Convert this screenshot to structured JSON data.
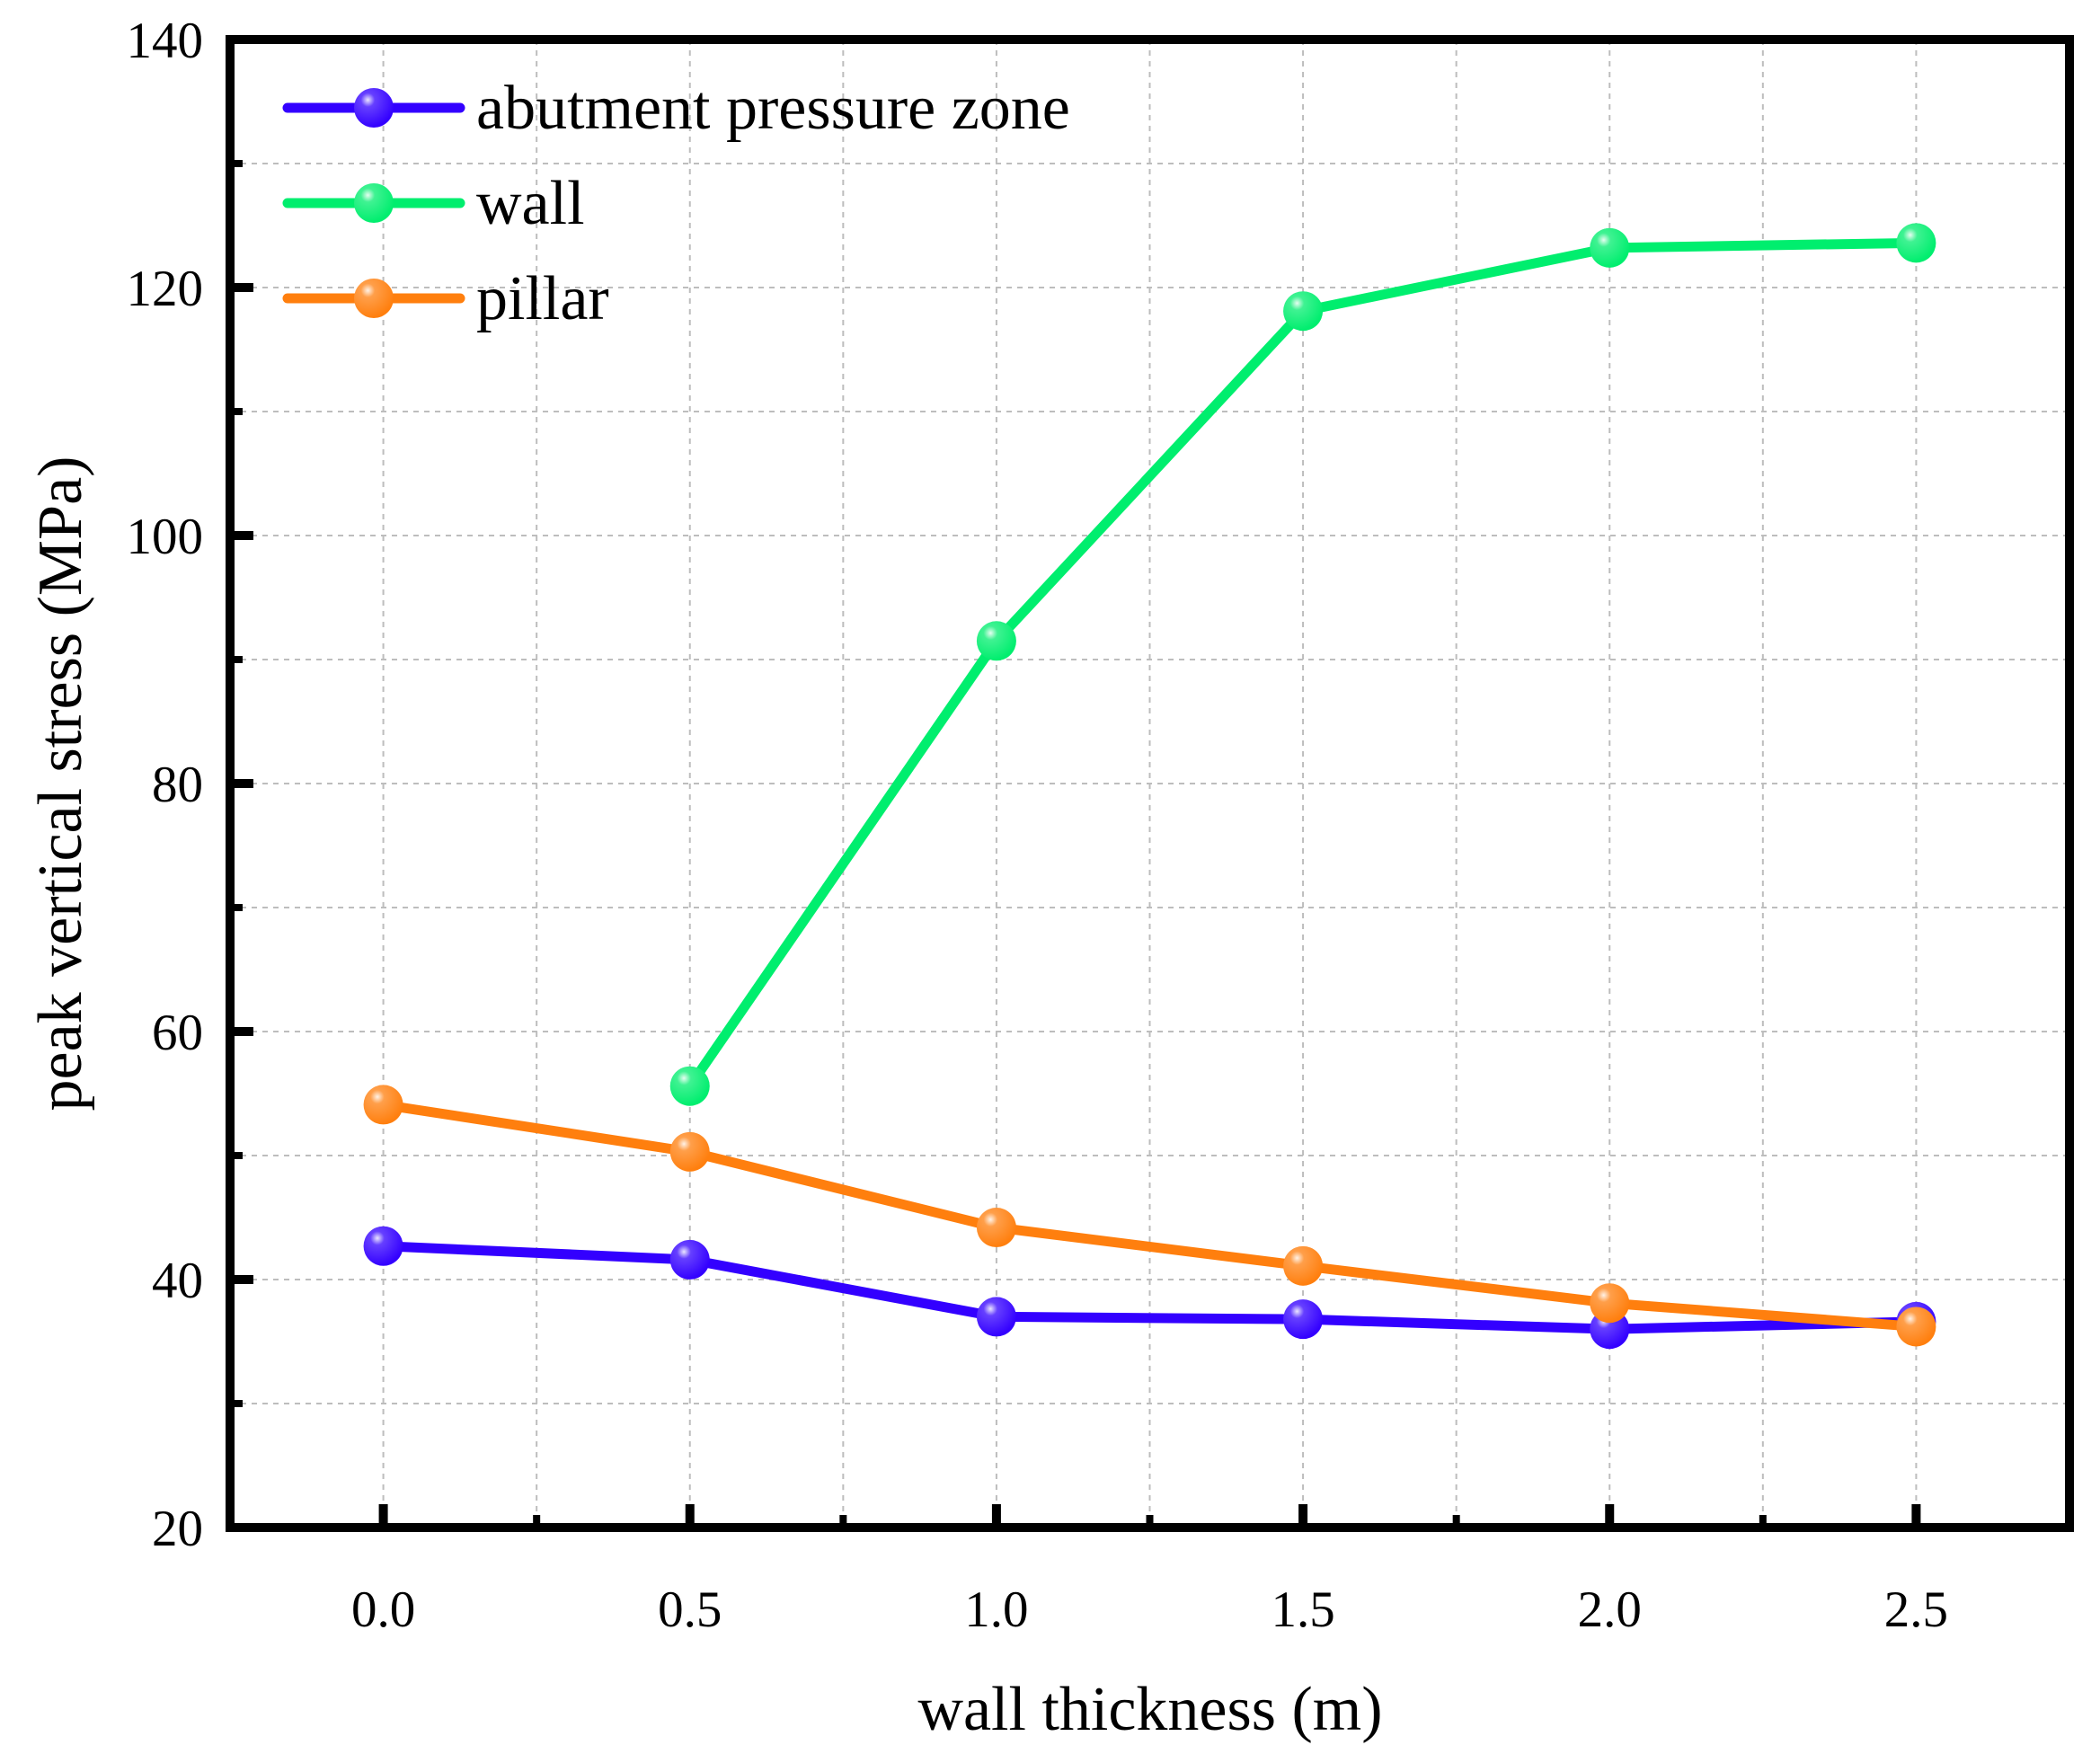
{
  "chart_data": {
    "type": "line",
    "title": "",
    "xlabel": "wall thickness (m)",
    "ylabel": "peak vertical stress (MPa)",
    "xlim": [
      -0.25,
      2.75
    ],
    "ylim": [
      20,
      140
    ],
    "xticks": [
      0.0,
      0.5,
      1.0,
      1.5,
      2.0,
      2.5
    ],
    "xtick_labels": [
      "0.0",
      "0.5",
      "1.0",
      "1.5",
      "2.0",
      "2.5"
    ],
    "yticks": [
      20,
      40,
      60,
      80,
      100,
      120,
      140
    ],
    "ytick_labels": [
      "20",
      "40",
      "60",
      "80",
      "100",
      "120",
      "140"
    ],
    "grid": true,
    "legend_position": "top-left",
    "series": [
      {
        "name": "abutment pressure zone",
        "color": "#3300ff",
        "x": [
          0.0,
          0.5,
          1.0,
          1.5,
          2.0,
          2.5
        ],
        "values": [
          42.7,
          41.6,
          37.0,
          36.8,
          36.0,
          36.6
        ]
      },
      {
        "name": "wall",
        "color": "#00ee6e",
        "x": [
          0.5,
          1.0,
          1.5,
          2.0,
          2.5
        ],
        "values": [
          55.6,
          91.5,
          118.1,
          123.2,
          123.6
        ]
      },
      {
        "name": "pillar",
        "color": "#ff7f0e",
        "x": [
          0.0,
          0.5,
          1.0,
          1.5,
          2.0,
          2.5
        ],
        "values": [
          54.1,
          50.3,
          44.2,
          41.1,
          38.1,
          36.2
        ]
      }
    ]
  }
}
